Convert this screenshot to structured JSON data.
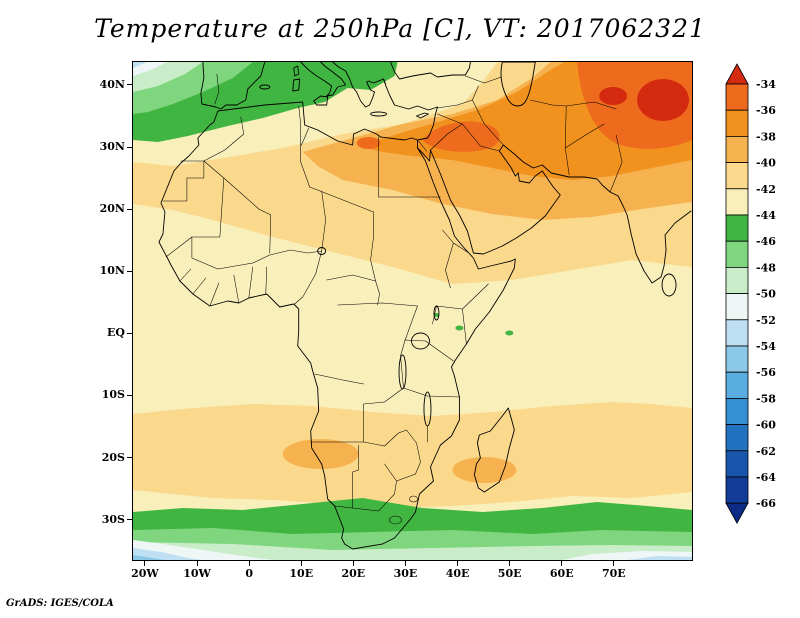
{
  "title": "Temperature at 250hPa [C], VT: 2017062321",
  "attribution": "GrADS: IGES/COLA",
  "axes": {
    "lat_ticks": [
      {
        "label": "40N",
        "value": 40
      },
      {
        "label": "30N",
        "value": 30
      },
      {
        "label": "20N",
        "value": 20
      },
      {
        "label": "10N",
        "value": 10
      },
      {
        "label": "EQ",
        "value": 0
      },
      {
        "label": "10S",
        "value": -10
      },
      {
        "label": "20S",
        "value": -20
      },
      {
        "label": "30S",
        "value": -30
      }
    ],
    "lon_ticks": [
      {
        "label": "20W",
        "value": -20
      },
      {
        "label": "10W",
        "value": -10
      },
      {
        "label": "0",
        "value": 0
      },
      {
        "label": "10E",
        "value": 10
      },
      {
        "label": "20E",
        "value": 20
      },
      {
        "label": "30E",
        "value": 30
      },
      {
        "label": "40E",
        "value": 40
      },
      {
        "label": "50E",
        "value": 50
      },
      {
        "label": "60E",
        "value": 60
      },
      {
        "label": "70E",
        "value": 70
      }
    ]
  },
  "colorbar": {
    "labels": [
      "-34",
      "-36",
      "-38",
      "-40",
      "-42",
      "-44",
      "-46",
      "-48",
      "-50",
      "-52",
      "-54",
      "-56",
      "-58",
      "-60",
      "-62",
      "-64",
      "-66"
    ],
    "colors": [
      "#d42a10",
      "#ee6b1e",
      "#f2921e",
      "#f6b24e",
      "#fad98c",
      "#f9efbb",
      "#41b541",
      "#7fd67f",
      "#c9edc9",
      "#eef7f6",
      "#bfe0f2",
      "#8cc8e8",
      "#5aade0",
      "#3590d2",
      "#2272c0",
      "#1955ad",
      "#113d99",
      "#0b2b85"
    ]
  },
  "chart_data": {
    "type": "heatmap",
    "title": "Temperature at 250hPa [C], VT: 2017062321",
    "variable": "Temperature",
    "level_hPa": 250,
    "units": "C",
    "valid_time": "2017062321",
    "lon_range": [
      -22.3,
      85.0
    ],
    "lat_range": [
      -36.5,
      43.7
    ],
    "contour_interval_C": 2,
    "scale_min_C": -66,
    "scale_max_C": -34,
    "regions": [
      {
        "area": "North Africa / Middle East band (20N-35N, 0E-80E)",
        "temp_C": "-36 to -40"
      },
      {
        "area": "Warm cores near 33N 60E-75E and 31N 33E-45E",
        "temp_C": "-34 and warmer"
      },
      {
        "area": "Sahel band (10N-20N)",
        "temp_C": "-40 to -42"
      },
      {
        "area": "Equatorial Africa (10N-10S)",
        "temp_C": "-42 to -44"
      },
      {
        "area": "Southern subtropics (12S-26S)",
        "temp_C": "-38 to -42"
      },
      {
        "area": "Mediterranean / NW corner (35N-44N west of 30E)",
        "temp_C": "-44 to -54 (coldest NW corner)"
      },
      {
        "area": "Southern midlatitude band (28S-36S)",
        "temp_C": "-44 to -50"
      },
      {
        "area": "SW and SE bottom corners",
        "temp_C": "-50 to -56"
      }
    ]
  }
}
